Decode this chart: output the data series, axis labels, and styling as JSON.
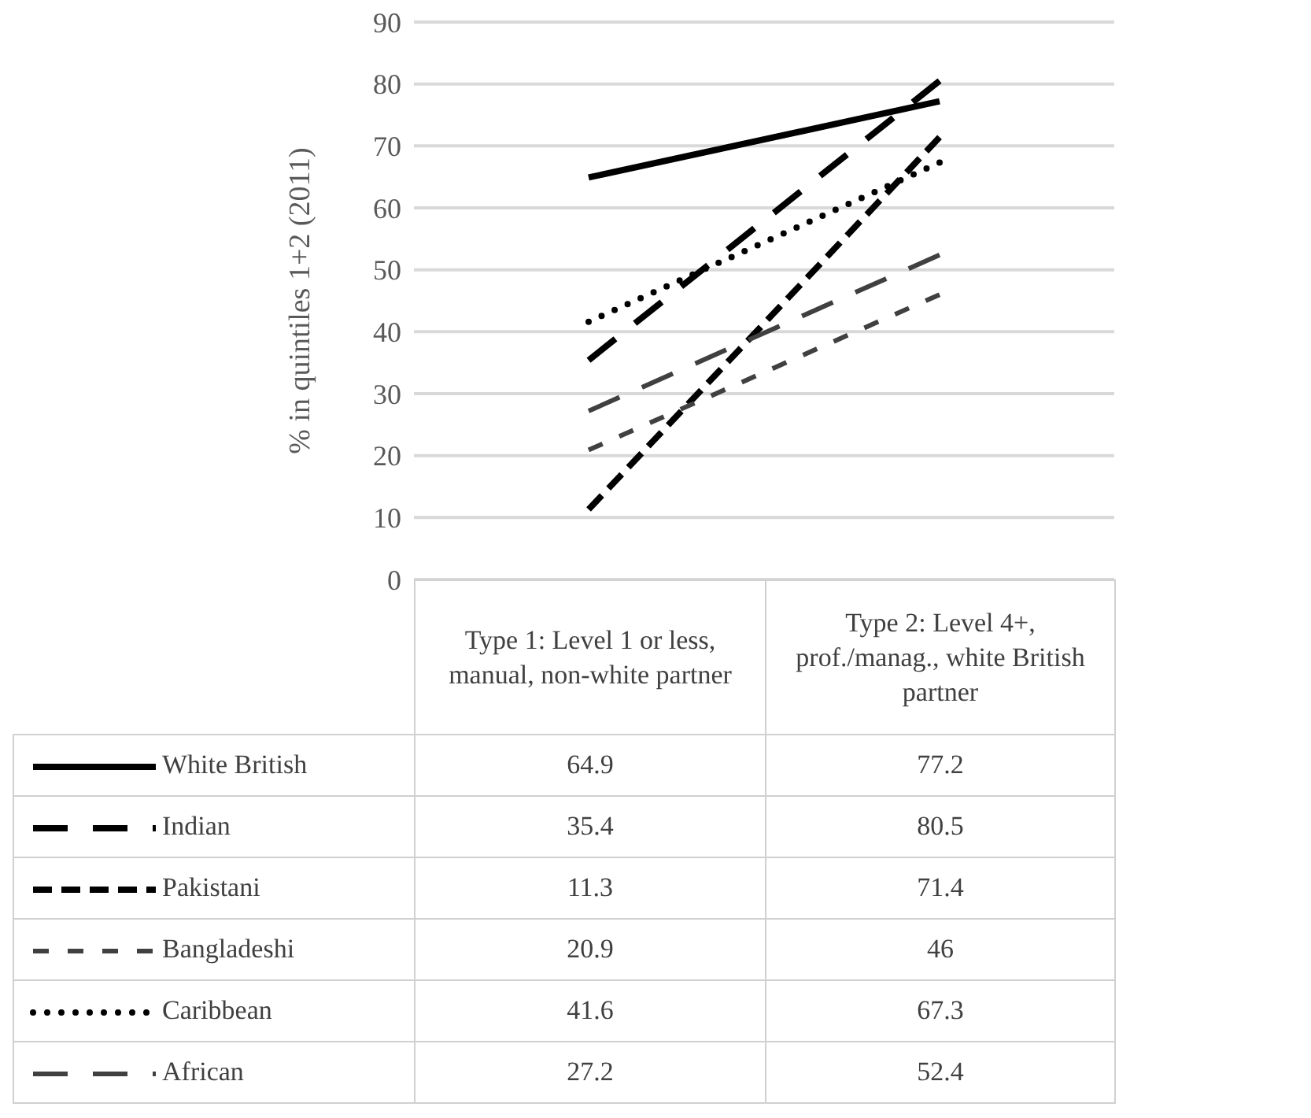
{
  "chart_data": {
    "type": "line",
    "ylabel": "% in quintiles 1+2 (2011)",
    "categories": [
      "Type 1: Level 1 or less, manual, non-white partner",
      "Type 2: Level 4+, prof./manag., white British partner"
    ],
    "series": [
      {
        "name": "White British",
        "color": "#000000",
        "line_style": "solid",
        "values": [
          64.9,
          77.2
        ]
      },
      {
        "name": "Indian",
        "color": "#000000",
        "line_style": "dashed",
        "values": [
          35.4,
          80.5
        ]
      },
      {
        "name": "Pakistani",
        "color": "#000000",
        "line_style": "dashed",
        "values": [
          11.3,
          71.4
        ]
      },
      {
        "name": "Bangladeshi",
        "color": "#404040",
        "line_style": "dashed",
        "values": [
          20.9,
          46
        ]
      },
      {
        "name": "Caribbean",
        "color": "#000000",
        "line_style": "dotted",
        "values": [
          41.6,
          67.3
        ]
      },
      {
        "name": "African",
        "color": "#404040",
        "line_style": "dashed",
        "values": [
          27.2,
          52.4
        ]
      }
    ],
    "ylim": [
      0,
      90
    ],
    "yticks": [
      0,
      10,
      20,
      30,
      40,
      50,
      60,
      70,
      80,
      90
    ],
    "grid": "y",
    "legend": "bottom",
    "data_labels": true,
    "marker": "none"
  }
}
